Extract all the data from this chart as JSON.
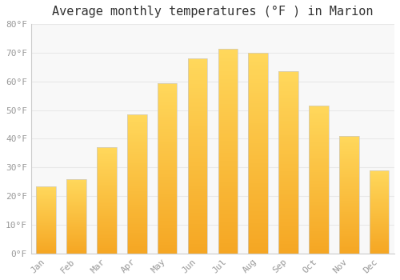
{
  "title": "Average monthly temperatures (°F ) in Marion",
  "months": [
    "Jan",
    "Feb",
    "Mar",
    "Apr",
    "May",
    "Jun",
    "Jul",
    "Aug",
    "Sep",
    "Oct",
    "Nov",
    "Dec"
  ],
  "values": [
    23.5,
    26,
    37,
    48.5,
    59.5,
    68,
    71.5,
    70,
    63.5,
    51.5,
    41,
    29
  ],
  "bar_color_bottom": "#F5A623",
  "bar_color_top": "#FFD85C",
  "bar_edge_color": "#CCCCCC",
  "background_color": "#FFFFFF",
  "plot_bg_color": "#F8F8F8",
  "grid_color": "#E8E8E8",
  "ylim": [
    0,
    80
  ],
  "yticks": [
    0,
    10,
    20,
    30,
    40,
    50,
    60,
    70,
    80
  ],
  "ytick_labels": [
    "0°F",
    "10°F",
    "20°F",
    "30°F",
    "40°F",
    "50°F",
    "60°F",
    "70°F",
    "80°F"
  ],
  "tick_color": "#999999",
  "title_fontsize": 11,
  "tick_fontsize": 8,
  "font_family": "monospace"
}
